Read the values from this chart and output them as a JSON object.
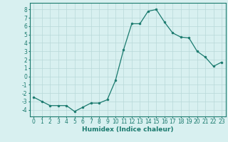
{
  "x": [
    0,
    1,
    2,
    3,
    4,
    5,
    6,
    7,
    8,
    9,
    10,
    11,
    12,
    13,
    14,
    15,
    16,
    17,
    18,
    19,
    20,
    21,
    22,
    23
  ],
  "y": [
    -2.5,
    -3.0,
    -3.5,
    -3.5,
    -3.5,
    -4.2,
    -3.7,
    -3.2,
    -3.2,
    -2.8,
    -0.5,
    3.2,
    6.3,
    6.3,
    7.8,
    8.0,
    6.5,
    5.2,
    4.7,
    4.6,
    3.0,
    2.3,
    1.2,
    1.7
  ],
  "line_color": "#1a7a6e",
  "marker": "o",
  "markersize": 2,
  "linewidth": 0.9,
  "xlabel": "Humidex (Indice chaleur)",
  "ylabel": "",
  "xlim": [
    -0.5,
    23.5
  ],
  "ylim": [
    -4.8,
    8.8
  ],
  "yticks": [
    -4,
    -3,
    -2,
    -1,
    0,
    1,
    2,
    3,
    4,
    5,
    6,
    7,
    8
  ],
  "xticks": [
    0,
    1,
    2,
    3,
    4,
    5,
    6,
    7,
    8,
    9,
    10,
    11,
    12,
    13,
    14,
    15,
    16,
    17,
    18,
    19,
    20,
    21,
    22,
    23
  ],
  "bg_color": "#d8f0f0",
  "grid_color": "#b8d8d8",
  "tick_color": "#1a7a6e",
  "label_color": "#1a7a6e",
  "xlabel_fontsize": 6.5,
  "tick_fontsize": 5.5
}
